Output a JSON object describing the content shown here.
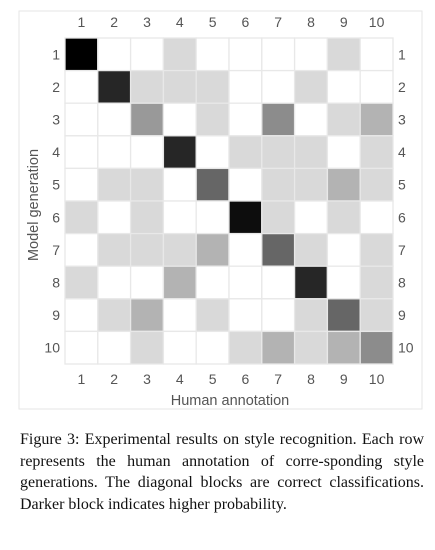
{
  "chart_data": {
    "type": "heatmap",
    "xlabel": "Human annotation",
    "ylabel": "Model generation",
    "x_categories": [
      "1",
      "2",
      "3",
      "4",
      "5",
      "6",
      "7",
      "8",
      "9",
      "10"
    ],
    "y_categories": [
      "1",
      "2",
      "3",
      "4",
      "5",
      "6",
      "7",
      "8",
      "9",
      "10"
    ],
    "colorscale": "white-to-black (darker = higher probability)",
    "grid": true,
    "matrix": [
      [
        1.0,
        0.0,
        0.0,
        0.15,
        0.0,
        0.0,
        0.0,
        0.0,
        0.15,
        0.0
      ],
      [
        0.0,
        0.85,
        0.15,
        0.15,
        0.15,
        0.0,
        0.0,
        0.15,
        0.0,
        0.0
      ],
      [
        0.0,
        0.0,
        0.4,
        0.0,
        0.15,
        0.0,
        0.45,
        0.0,
        0.15,
        0.3
      ],
      [
        0.0,
        0.0,
        0.0,
        0.85,
        0.0,
        0.15,
        0.15,
        0.15,
        0.0,
        0.15
      ],
      [
        0.0,
        0.15,
        0.15,
        0.0,
        0.6,
        0.0,
        0.15,
        0.15,
        0.3,
        0.15
      ],
      [
        0.15,
        0.0,
        0.15,
        0.0,
        0.0,
        0.95,
        0.15,
        0.0,
        0.15,
        0.0
      ],
      [
        0.0,
        0.15,
        0.15,
        0.15,
        0.3,
        0.0,
        0.6,
        0.15,
        0.0,
        0.15
      ],
      [
        0.15,
        0.0,
        0.0,
        0.3,
        0.0,
        0.0,
        0.0,
        0.85,
        0.0,
        0.15
      ],
      [
        0.0,
        0.15,
        0.3,
        0.0,
        0.15,
        0.0,
        0.0,
        0.15,
        0.6,
        0.15
      ],
      [
        0.0,
        0.0,
        0.15,
        0.0,
        0.0,
        0.15,
        0.3,
        0.15,
        0.3,
        0.45
      ]
    ]
  },
  "caption": {
    "label": "Figure 3:",
    "text": "Experimental results on style recognition. Each row represents the human annotation of corre-sponding style generations. The diagonal blocks are correct classifications. Darker block indicates higher probability."
  }
}
